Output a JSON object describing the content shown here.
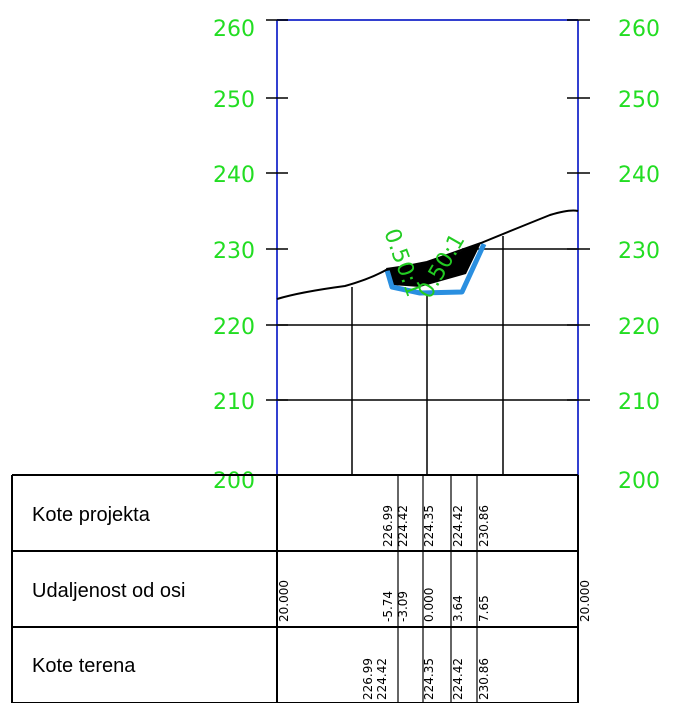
{
  "colors": {
    "frame": "#3340d0",
    "elevation_labels": "#22dd22",
    "slope_labels": "#22cc22",
    "drainage": "#2a8fe0",
    "cut_fill": "#000000",
    "grid": "#000000"
  },
  "elevation_axis": {
    "left_labels": [
      "260",
      "250",
      "240",
      "230",
      "220",
      "210",
      "200"
    ],
    "right_labels": [
      "260",
      "250",
      "240",
      "230",
      "220",
      "210",
      "200"
    ]
  },
  "slope_labels": {
    "left": "0.50:1",
    "right": "0.50:1"
  },
  "table": {
    "row_labels": [
      "Kote projekta",
      "Udaljenost od osi",
      "Kote terena"
    ],
    "kote_projekta": [
      "226.99",
      "224.42",
      "224.35",
      "224.42",
      "230.86"
    ],
    "udaljenost": [
      "-5.74",
      "-3.09",
      "0.000",
      "3.64",
      "7.65"
    ],
    "udaljenost_edges": [
      "20.000",
      "20.000"
    ],
    "kote_terena": [
      "226.99",
      "224.42",
      "224.35",
      "224.42",
      "230.86"
    ]
  }
}
